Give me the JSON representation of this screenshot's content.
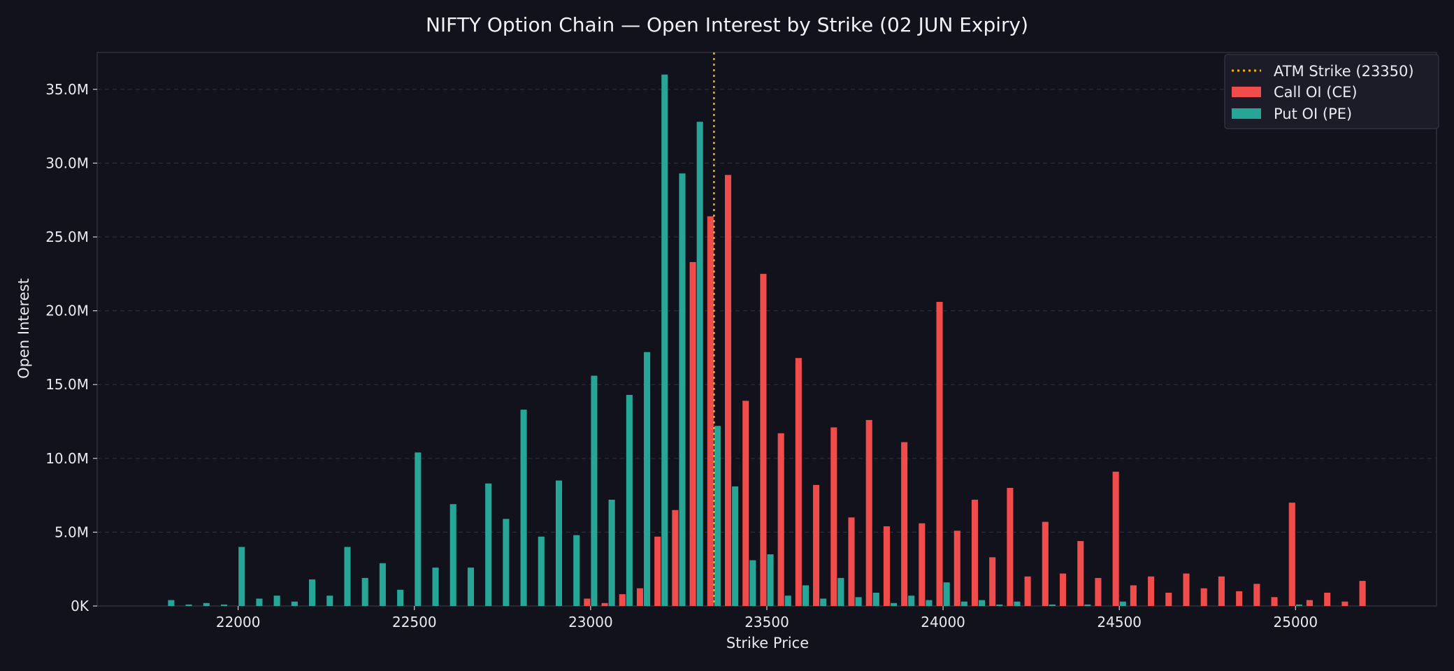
{
  "chart_data": {
    "type": "bar",
    "title": "NIFTY Option Chain — Open Interest by Strike (02 JUN Expiry)",
    "xlabel": "Strike Price",
    "ylabel": "Open Interest",
    "xlim": [
      21600,
      25400
    ],
    "ylim": [
      0,
      37500000
    ],
    "x_ticks": [
      22000,
      22500,
      23000,
      23500,
      24000,
      24500,
      25000
    ],
    "x_tick_labels": [
      "22000",
      "22500",
      "23000",
      "23500",
      "24000",
      "24500",
      "25000"
    ],
    "y_ticks": [
      0,
      5000000,
      10000000,
      15000000,
      20000000,
      25000000,
      30000000,
      35000000
    ],
    "y_tick_labels": [
      "0K",
      "5.0M",
      "10.0M",
      "15.0M",
      "20.0M",
      "25.0M",
      "30.0M",
      "35.0M"
    ],
    "grid": "y-dashed",
    "legend_position": "top-right",
    "atm_line": {
      "label": "ATM Strike (23350)",
      "x": 23350,
      "color": "#f0b400",
      "style": "dotted"
    },
    "series": [
      {
        "name": "Call OI (CE)",
        "color": "#f04c4c",
        "points": [
          [
            23000,
            500000
          ],
          [
            23050,
            200000
          ],
          [
            23100,
            800000
          ],
          [
            23150,
            1200000
          ],
          [
            23200,
            4700000
          ],
          [
            23250,
            6500000
          ],
          [
            23300,
            23300000
          ],
          [
            23350,
            26400000
          ],
          [
            23400,
            29200000
          ],
          [
            23450,
            13900000
          ],
          [
            23500,
            22500000
          ],
          [
            23550,
            11700000
          ],
          [
            23600,
            16800000
          ],
          [
            23650,
            8200000
          ],
          [
            23700,
            12100000
          ],
          [
            23750,
            6000000
          ],
          [
            23800,
            12600000
          ],
          [
            23850,
            5400000
          ],
          [
            23900,
            11100000
          ],
          [
            23950,
            5600000
          ],
          [
            24000,
            20600000
          ],
          [
            24050,
            5100000
          ],
          [
            24100,
            7200000
          ],
          [
            24150,
            3300000
          ],
          [
            24200,
            8000000
          ],
          [
            24250,
            2000000
          ],
          [
            24300,
            5700000
          ],
          [
            24350,
            2200000
          ],
          [
            24400,
            4400000
          ],
          [
            24450,
            1900000
          ],
          [
            24500,
            9100000
          ],
          [
            24550,
            1400000
          ],
          [
            24600,
            2000000
          ],
          [
            24650,
            900000
          ],
          [
            24700,
            2200000
          ],
          [
            24750,
            1200000
          ],
          [
            24800,
            2000000
          ],
          [
            24850,
            1000000
          ],
          [
            24900,
            1500000
          ],
          [
            24950,
            600000
          ],
          [
            25000,
            7000000
          ],
          [
            25050,
            400000
          ],
          [
            25100,
            900000
          ],
          [
            25150,
            300000
          ],
          [
            25200,
            1700000
          ]
        ]
      },
      {
        "name": "Put OI (PE)",
        "color": "#27a597",
        "points": [
          [
            21800,
            400000
          ],
          [
            21850,
            100000
          ],
          [
            21900,
            200000
          ],
          [
            21950,
            100000
          ],
          [
            22000,
            4000000
          ],
          [
            22050,
            500000
          ],
          [
            22100,
            700000
          ],
          [
            22150,
            300000
          ],
          [
            22200,
            1800000
          ],
          [
            22250,
            700000
          ],
          [
            22300,
            4000000
          ],
          [
            22350,
            1900000
          ],
          [
            22400,
            2900000
          ],
          [
            22450,
            1100000
          ],
          [
            22500,
            10400000
          ],
          [
            22550,
            2600000
          ],
          [
            22600,
            6900000
          ],
          [
            22650,
            2600000
          ],
          [
            22700,
            8300000
          ],
          [
            22750,
            5900000
          ],
          [
            22800,
            13300000
          ],
          [
            22850,
            4700000
          ],
          [
            22900,
            8500000
          ],
          [
            22950,
            4800000
          ],
          [
            23000,
            15600000
          ],
          [
            23050,
            7200000
          ],
          [
            23100,
            14300000
          ],
          [
            23150,
            17200000
          ],
          [
            23200,
            36000000
          ],
          [
            23250,
            29300000
          ],
          [
            23300,
            32800000
          ],
          [
            23350,
            12200000
          ],
          [
            23400,
            8100000
          ],
          [
            23450,
            3100000
          ],
          [
            23500,
            3500000
          ],
          [
            23550,
            700000
          ],
          [
            23600,
            1400000
          ],
          [
            23650,
            500000
          ],
          [
            23700,
            1900000
          ],
          [
            23750,
            600000
          ],
          [
            23800,
            900000
          ],
          [
            23850,
            200000
          ],
          [
            23900,
            700000
          ],
          [
            23950,
            400000
          ],
          [
            24000,
            1600000
          ],
          [
            24050,
            300000
          ],
          [
            24100,
            400000
          ],
          [
            24150,
            100000
          ],
          [
            24200,
            300000
          ],
          [
            24300,
            100000
          ],
          [
            24400,
            100000
          ],
          [
            24500,
            300000
          ],
          [
            25000,
            100000
          ]
        ]
      }
    ]
  }
}
